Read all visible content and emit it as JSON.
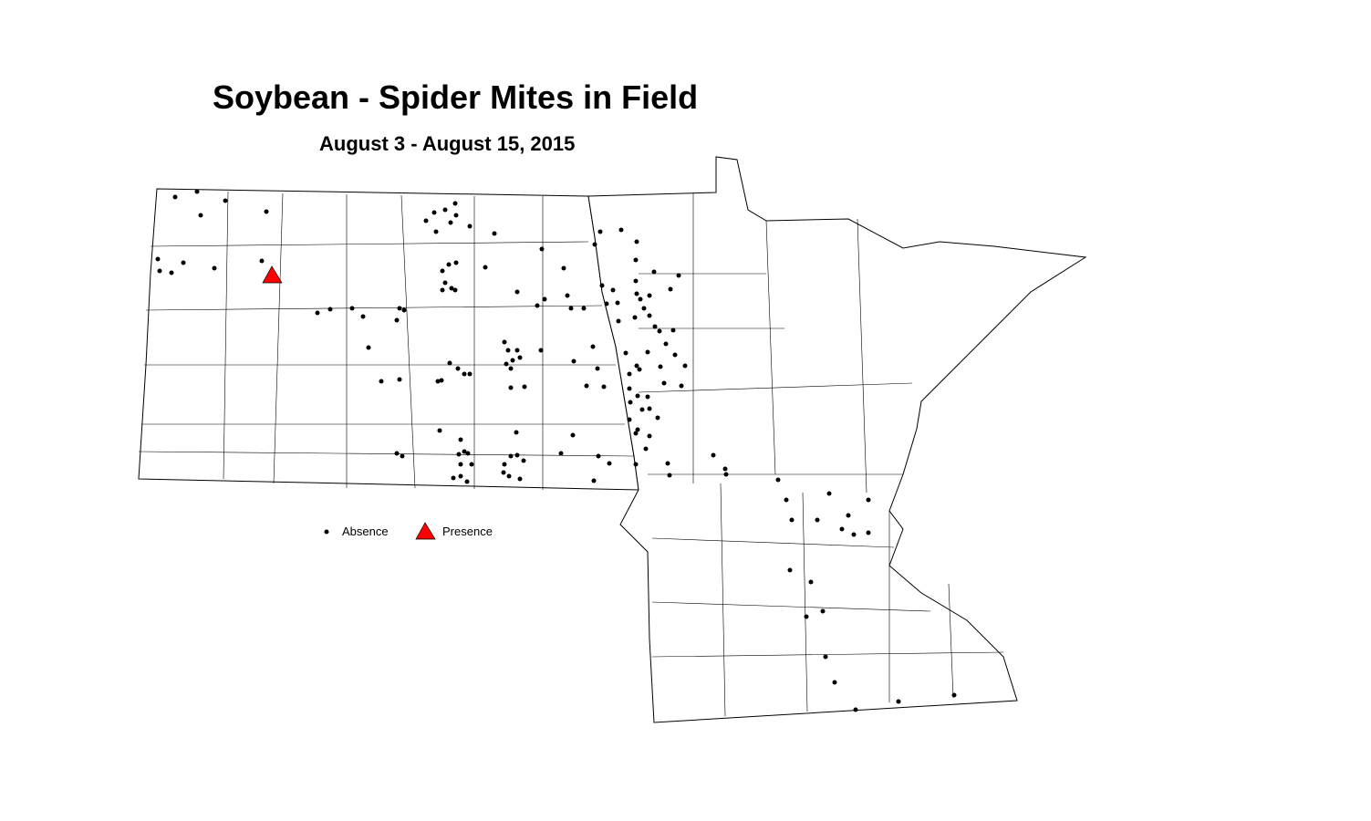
{
  "title": "Soybean - Spider Mites in Field",
  "subtitle": "August 3 - August 15, 2015",
  "legend": [
    {
      "label": "Absence",
      "symbol": "dot",
      "color": "#000000"
    },
    {
      "label": "Presence",
      "symbol": "triangle",
      "color": "#ff0000"
    }
  ],
  "colors": {
    "outline": "#000000",
    "fill": "#ffffff",
    "presence": "#ff0000",
    "absence": "#000000"
  }
}
